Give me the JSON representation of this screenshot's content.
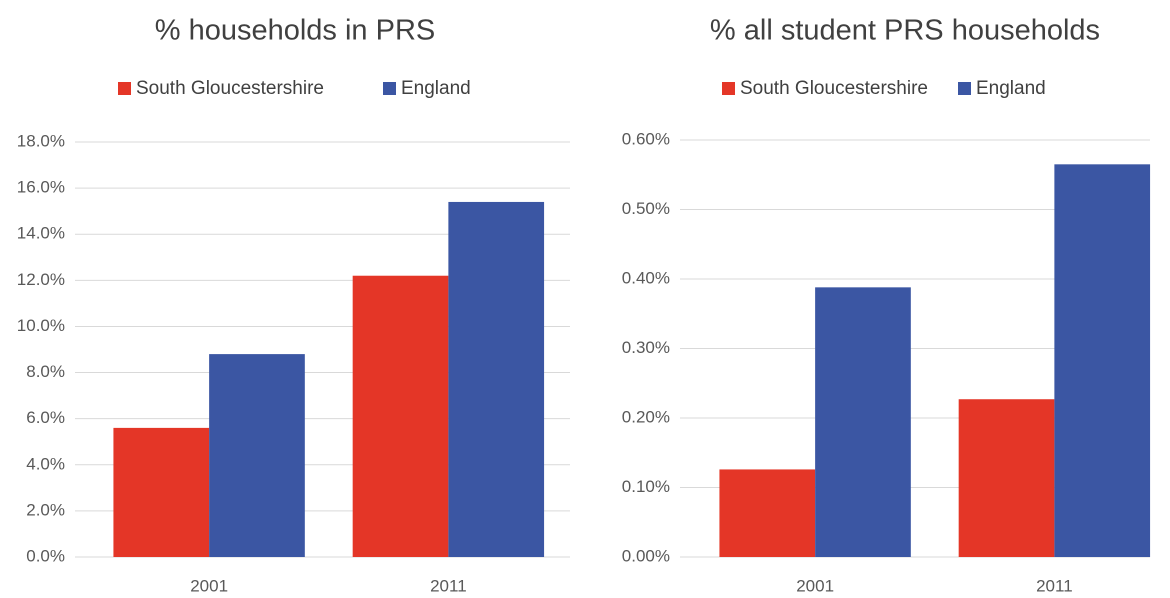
{
  "chart_data": [
    {
      "type": "bar",
      "title": "% households in PRS",
      "categories": [
        "2001",
        "2011"
      ],
      "series": [
        {
          "name": "South Gloucestershire",
          "color": "#e43627",
          "values": [
            5.6,
            12.2
          ]
        },
        {
          "name": "England",
          "color": "#3b56a3",
          "values": [
            8.8,
            15.4
          ]
        }
      ],
      "ylim": [
        0,
        18
      ],
      "yticks": [
        {
          "value": 0,
          "label": "0.0%"
        },
        {
          "value": 2,
          "label": "2.0%"
        },
        {
          "value": 4,
          "label": "4.0%"
        },
        {
          "value": 6,
          "label": "6.0%"
        },
        {
          "value": 8,
          "label": "8.0%"
        },
        {
          "value": 10,
          "label": "10.0%"
        },
        {
          "value": 12,
          "label": "12.0%"
        },
        {
          "value": 14,
          "label": "14.0%"
        },
        {
          "value": 16,
          "label": "16.0%"
        },
        {
          "value": 18,
          "label": "18.0%"
        }
      ],
      "grid": true,
      "legend": "top"
    },
    {
      "type": "bar",
      "title": "% all student PRS households",
      "categories": [
        "2001",
        "2011"
      ],
      "series": [
        {
          "name": "South Gloucestershire",
          "color": "#e43627",
          "values": [
            0.126,
            0.227
          ]
        },
        {
          "name": "England",
          "color": "#3b56a3",
          "values": [
            0.388,
            0.565
          ]
        }
      ],
      "ylim": [
        0,
        0.6
      ],
      "yticks": [
        {
          "value": 0,
          "label": "0.00%"
        },
        {
          "value": 0.1,
          "label": "0.10%"
        },
        {
          "value": 0.2,
          "label": "0.20%"
        },
        {
          "value": 0.3,
          "label": "0.30%"
        },
        {
          "value": 0.4,
          "label": "0.40%"
        },
        {
          "value": 0.5,
          "label": "0.50%"
        },
        {
          "value": 0.6,
          "label": "0.60%"
        }
      ],
      "grid": true,
      "legend": "top"
    }
  ]
}
